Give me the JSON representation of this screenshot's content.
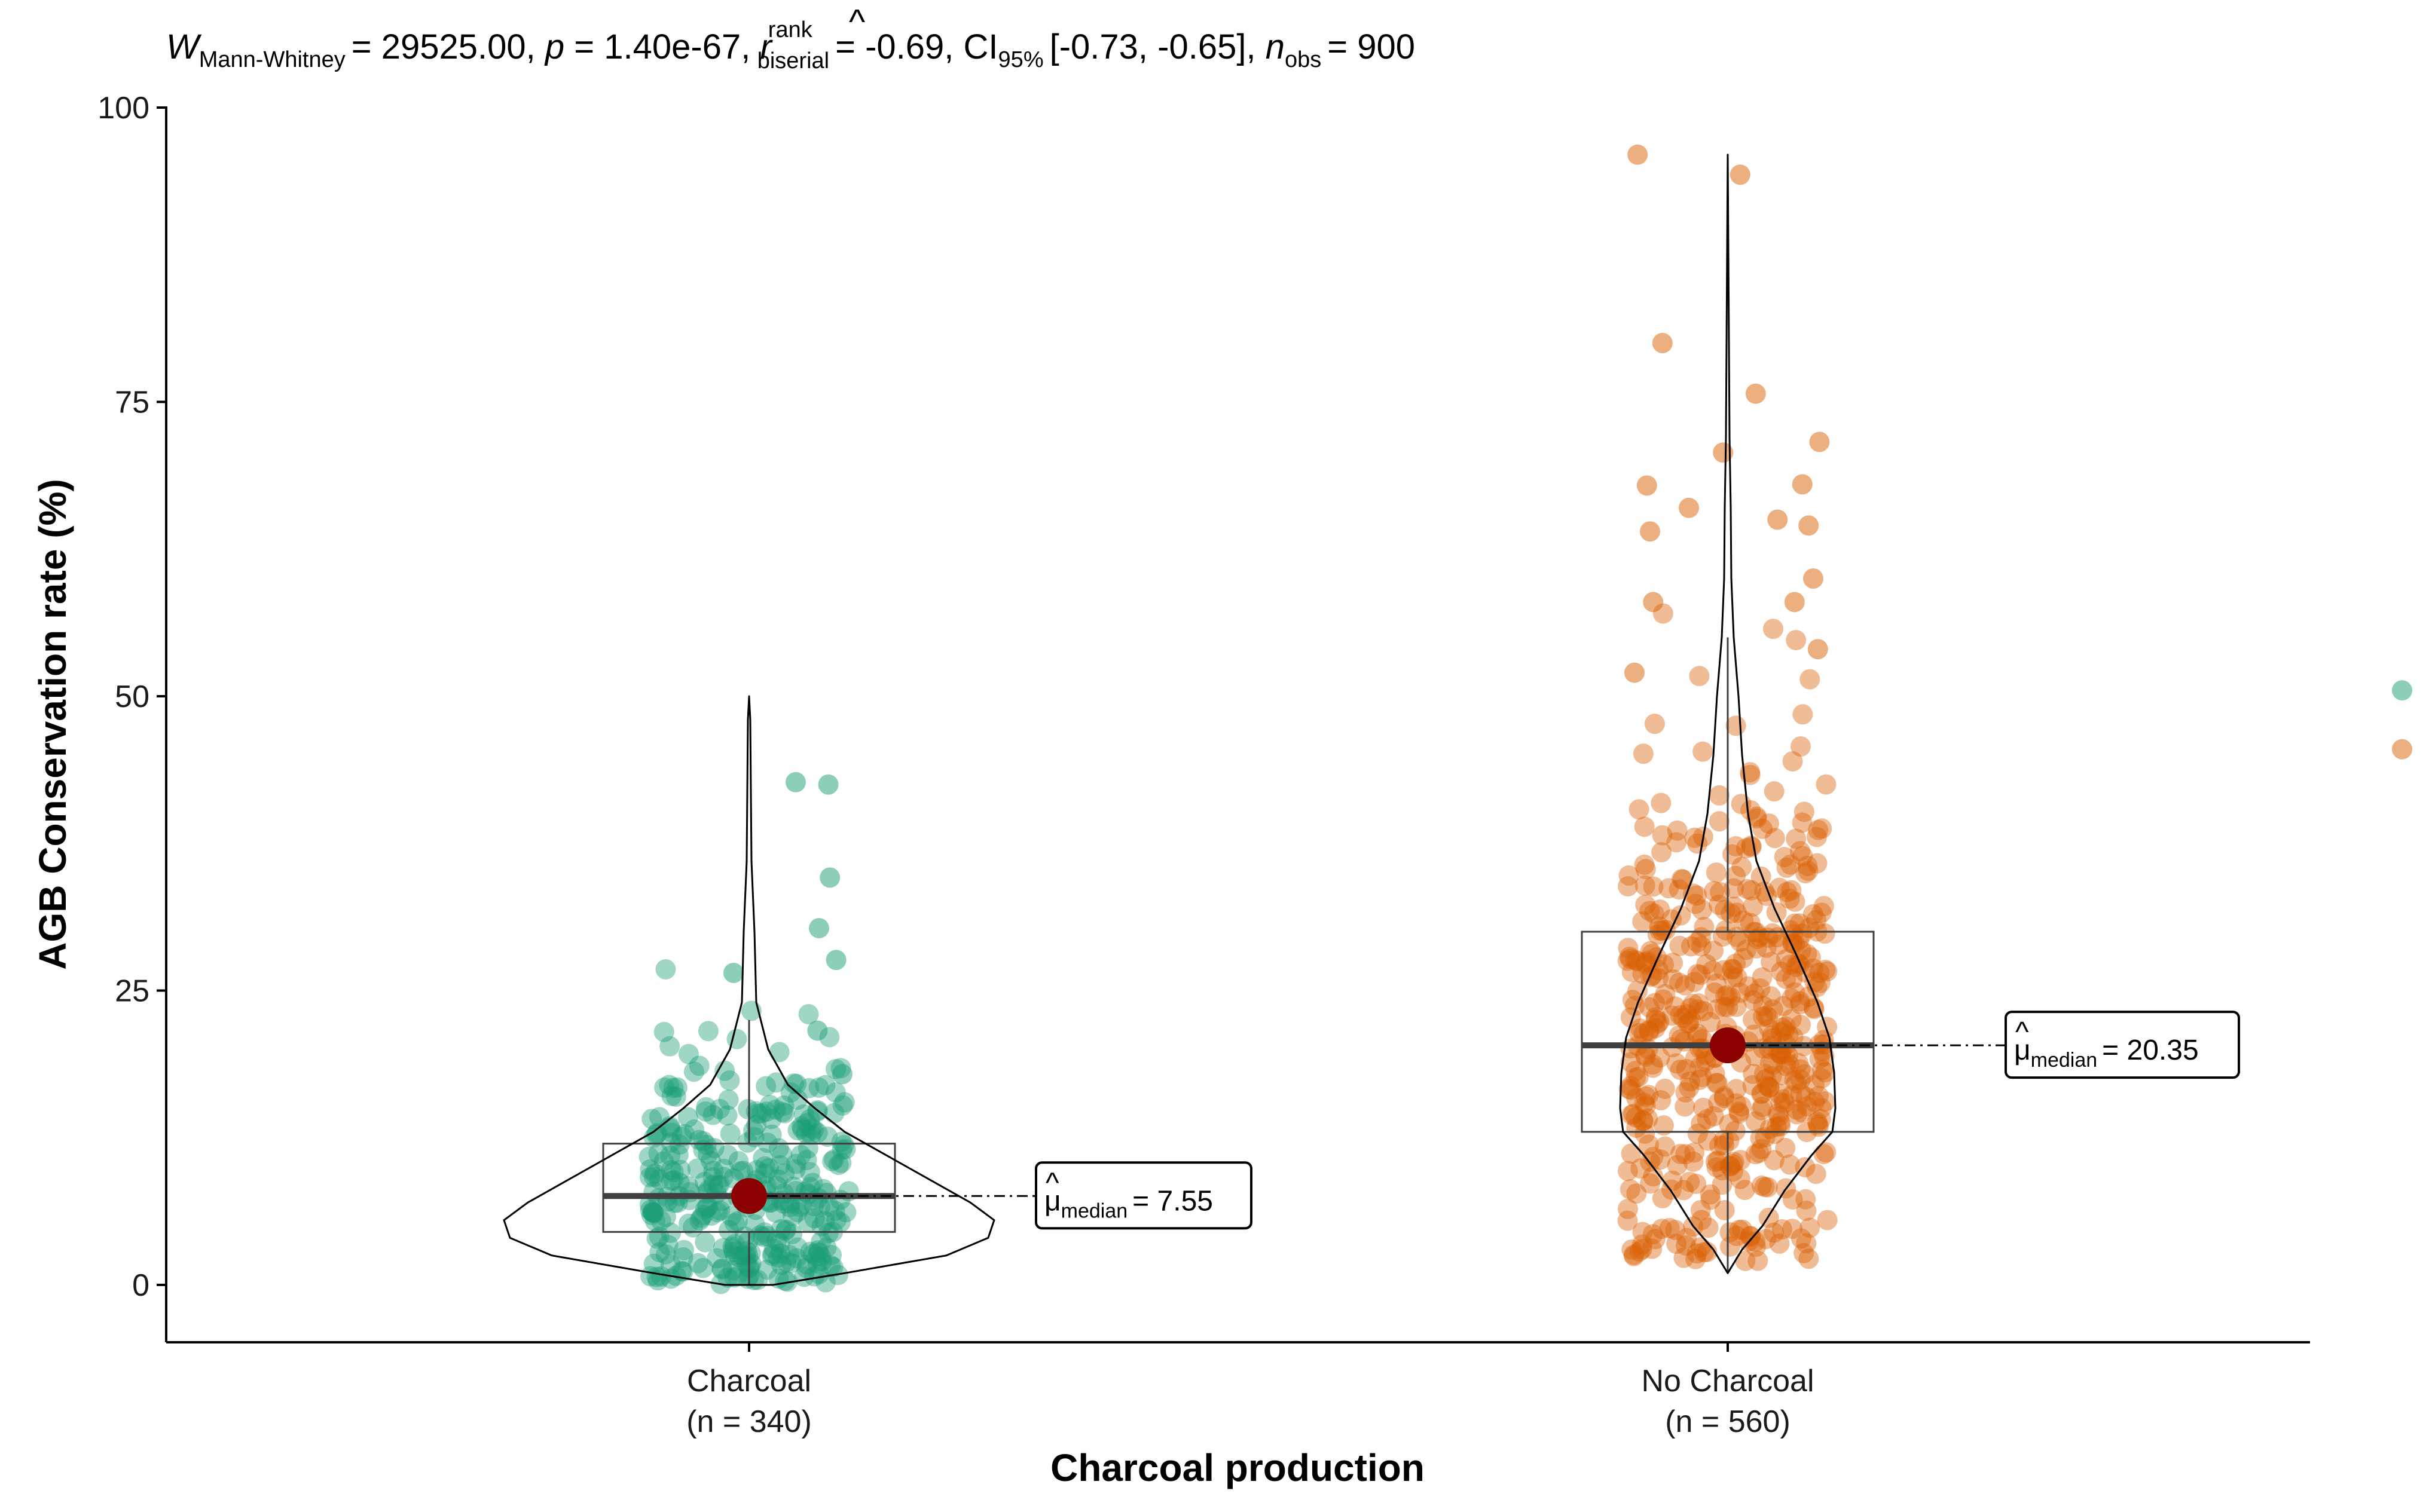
{
  "chart_data": {
    "type": "violin-box-scatter",
    "subtitle": {
      "W_symbol": "W",
      "W_sub": "Mann-Whitney",
      "W_value": "= 29525.00,",
      "p_symbol": "p",
      "p_value": "= 1.40e-67,",
      "r_symbol": "r",
      "r_sup": "rank",
      "r_sub": "biserial",
      "r_value": "= -0.69,",
      "ci_symbol": "CI",
      "ci_sub": "95%",
      "ci_value": "[-0.73, -0.65],",
      "n_symbol": "n",
      "n_sub": "obs",
      "n_value": "= 900"
    },
    "xlabel": "Charcoal production",
    "ylabel": "AGB Conservation rate (%)",
    "ylim": [
      -5,
      101
    ],
    "yticks": [
      "0",
      "25",
      "50",
      "75",
      "100"
    ],
    "groups": [
      {
        "name": "Charcoal",
        "n_label": "(n = 340)",
        "color": "#1B9E77",
        "n": 340,
        "q1": 4.5,
        "median": 7.55,
        "q3": 12.0,
        "whisker_low": 0.0,
        "whisker_high": 22.5,
        "min": 0.0,
        "max": 50.0,
        "median_mu": "μ",
        "median_sub": "median",
        "median_text": "= 7.55"
      },
      {
        "name": "No Charcoal",
        "n_label": "(n = 560)",
        "color": "#D95F02",
        "n": 560,
        "q1": 13.0,
        "median": 20.35,
        "q3": 30.0,
        "whisker_low": 1.0,
        "whisker_high": 55.0,
        "min": 1.0,
        "max": 96.0,
        "median_mu": "μ",
        "median_sub": "median",
        "median_text": "= 20.35"
      }
    ],
    "legend": [
      {
        "color": "#1B9E77",
        "value": 50.5
      },
      {
        "color": "#D95F02",
        "value": 45.5
      }
    ]
  },
  "colors": {
    "median_point": "#8B0000",
    "box_line": "#404040",
    "violin_line": "#000000"
  }
}
